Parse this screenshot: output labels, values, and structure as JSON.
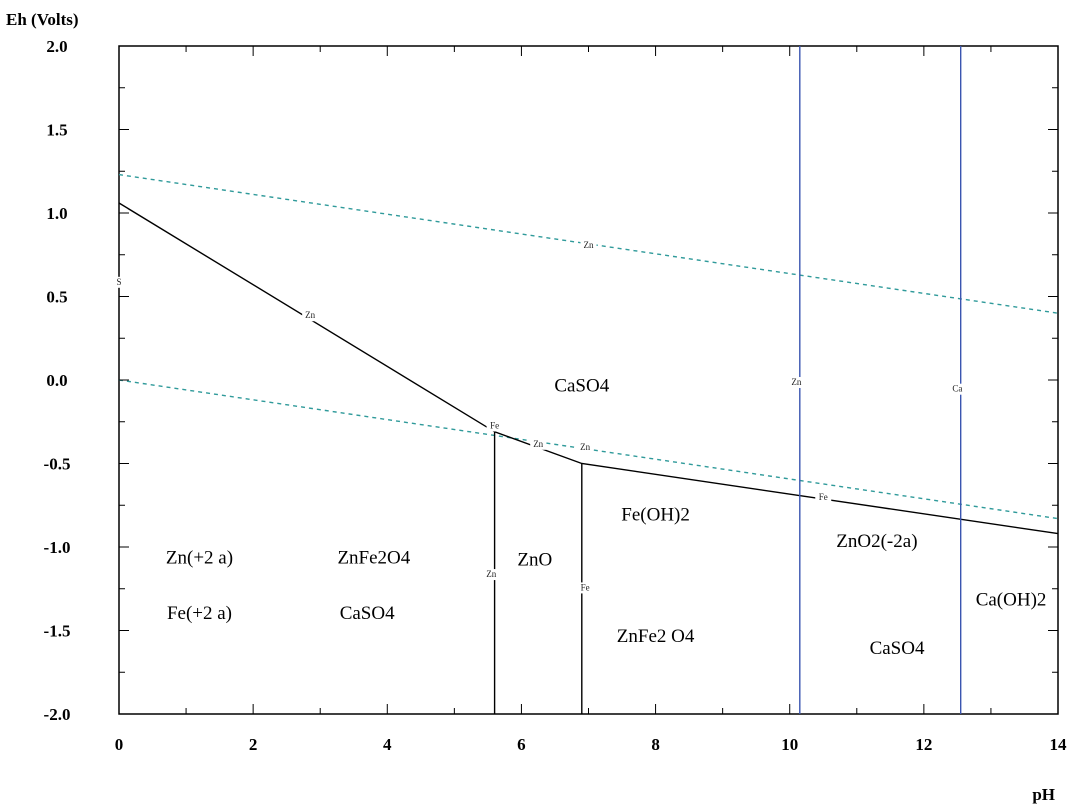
{
  "chart_data": {
    "type": "line",
    "xlabel": "pH",
    "ylabel": "Eh (Volts)",
    "xlim": [
      0,
      14
    ],
    "ylim": [
      -2.0,
      2.0
    ],
    "xticks": [
      "0",
      "2",
      "4",
      "6",
      "8",
      "10",
      "12",
      "14"
    ],
    "yticks": [
      "2.0",
      "1.5",
      "1.0",
      "0.5",
      "0.0",
      "-0.5",
      "-1.0",
      "-1.5",
      "-2.0"
    ],
    "grid": false,
    "colors": {
      "water": "#2f9a9a",
      "boundary": "#000000",
      "aqueous": "#3a55b0"
    },
    "series": [
      {
        "kind": "water",
        "x": [
          0,
          14
        ],
        "y": [
          1.23,
          0.4
        ]
      },
      {
        "kind": "water",
        "x": [
          0,
          14
        ],
        "y": [
          0.0,
          -0.83
        ]
      },
      {
        "kind": "boundary",
        "x": [
          0,
          5.6,
          6.9,
          14
        ],
        "y": [
          1.06,
          -0.31,
          -0.5,
          -0.92
        ]
      },
      {
        "kind": "boundary",
        "x": [
          5.6,
          5.6
        ],
        "y": [
          -0.31,
          -2.0
        ]
      },
      {
        "kind": "boundary",
        "x": [
          6.9,
          6.9
        ],
        "y": [
          -0.5,
          -2.0
        ]
      },
      {
        "kind": "aqueous",
        "x": [
          10.15,
          10.15
        ],
        "y": [
          2.0,
          -2.0
        ]
      },
      {
        "kind": "aqueous",
        "x": [
          12.55,
          12.55
        ],
        "y": [
          2.0,
          -2.0
        ]
      }
    ],
    "region_labels": [
      {
        "text": "CaSO4",
        "x": 6.9,
        "y": -0.07
      },
      {
        "text": "Zn(+2 a)",
        "x": 1.2,
        "y": -1.1
      },
      {
        "text": "Fe(+2 a)",
        "x": 1.2,
        "y": -1.43
      },
      {
        "text": "ZnFe2O4",
        "x": 3.8,
        "y": -1.1
      },
      {
        "text": "CaSO4",
        "x": 3.7,
        "y": -1.43
      },
      {
        "text": "ZnO",
        "x": 6.2,
        "y": -1.11
      },
      {
        "text": "Fe(OH)2",
        "x": 8.0,
        "y": -0.84
      },
      {
        "text": "ZnO2(-2a)",
        "x": 11.3,
        "y": -1.0
      },
      {
        "text": "ZnFe2 O4",
        "x": 8.0,
        "y": -1.57
      },
      {
        "text": "CaSO4",
        "x": 11.6,
        "y": -1.64
      },
      {
        "text": "Ca(OH)2",
        "x": 13.3,
        "y": -1.35
      }
    ],
    "line_labels": [
      {
        "text": "Zn",
        "x": 7.0,
        "y": 0.79
      },
      {
        "text": "S",
        "x": 0.0,
        "y": 0.57
      },
      {
        "text": "Zn",
        "x": 2.85,
        "y": 0.37
      },
      {
        "text": "Fe",
        "x": 5.6,
        "y": -0.29
      },
      {
        "text": "Zn",
        "x": 6.25,
        "y": -0.4
      },
      {
        "text": "Zn",
        "x": 6.95,
        "y": -0.42
      },
      {
        "text": "Zn",
        "x": 10.1,
        "y": -0.03
      },
      {
        "text": "Ca",
        "x": 12.5,
        "y": -0.07
      },
      {
        "text": "Fe",
        "x": 10.5,
        "y": -0.72
      },
      {
        "text": "Zn",
        "x": 5.55,
        "y": -1.18
      },
      {
        "text": "Fe",
        "x": 6.95,
        "y": -1.26
      }
    ]
  }
}
